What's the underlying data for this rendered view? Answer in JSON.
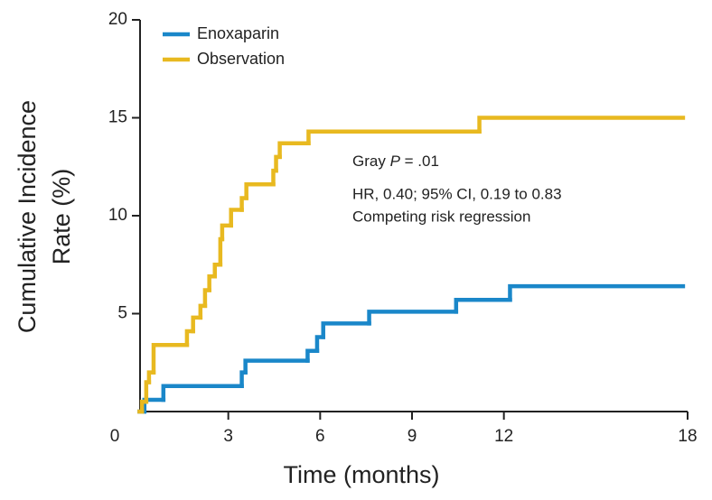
{
  "chart_data": {
    "type": "step",
    "y_label": [
      "Cumulative Incidence",
      "Rate (%)"
    ],
    "x_label": "Time (months)",
    "xlim": [
      0,
      18
    ],
    "xticks": [
      0,
      3,
      6,
      9,
      12,
      18
    ],
    "ylim": [
      0,
      20
    ],
    "yticks": [
      5,
      10,
      15,
      20
    ],
    "legend": "top-left",
    "annotations": [
      "Gray",
      "P",
      "= .01",
      "HR, 0.40; 95% CI, 0.19 to 0.83",
      "Competing risk regression"
    ],
    "series": [
      {
        "name": "Enoxaparin",
        "color": "#1a87c9",
        "x": [
          0.1,
          0.26,
          0.88,
          3.44,
          3.56,
          5.59,
          5.9,
          6.1,
          7.6,
          10.44,
          12.2,
          17.85
        ],
        "values": [
          0,
          0.6,
          1.3,
          2.0,
          2.6,
          3.1,
          3.8,
          4.5,
          5.1,
          5.7,
          6.4,
          6.4
        ]
      },
      {
        "name": "Observation",
        "color": "#e8b920",
        "x": [
          0.1,
          0.18,
          0.32,
          0.41,
          0.56,
          1.65,
          1.85,
          2.09,
          2.24,
          2.38,
          2.56,
          2.74,
          2.8,
          3.09,
          3.44,
          3.59,
          4.47,
          4.56,
          4.68,
          5.62,
          11.2,
          17.85
        ],
        "values": [
          0,
          0.5,
          1.5,
          2.0,
          3.4,
          4.1,
          4.8,
          5.4,
          6.2,
          6.9,
          7.5,
          8.8,
          9.5,
          10.3,
          10.9,
          11.6,
          12.3,
          13.0,
          13.7,
          14.3,
          15.0,
          15.0
        ]
      }
    ]
  }
}
